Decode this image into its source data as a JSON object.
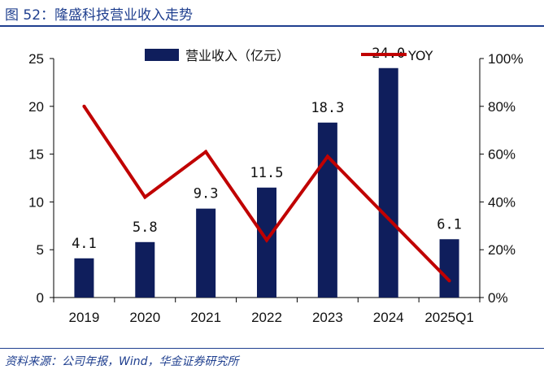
{
  "figure": {
    "title": "图 52：隆盛科技营业收入走势",
    "source": "资料来源：公司年报，Wind，华金证券研究所"
  },
  "chart_data": {
    "type": "bar+line",
    "categories": [
      "2019",
      "2020",
      "2021",
      "2022",
      "2023",
      "2024",
      "2025Q1"
    ],
    "series": [
      {
        "name": "营业收入（亿元）",
        "type": "bar",
        "axis": "left",
        "values": [
          4.1,
          5.8,
          9.3,
          11.5,
          18.3,
          24.0,
          6.1
        ],
        "labels": [
          "4.1",
          "5.8",
          "9.3",
          "11.5",
          "18.3",
          "24.0",
          "6.1"
        ]
      },
      {
        "name": "YOY",
        "type": "line",
        "axis": "right",
        "values": [
          80,
          42,
          61,
          24,
          59,
          33,
          7
        ]
      }
    ],
    "y_left": {
      "min": 0,
      "max": 25,
      "ticks": [
        "0",
        "5",
        "10",
        "15",
        "20",
        "25"
      ]
    },
    "y_right": {
      "min": 0,
      "max": 100,
      "ticks": [
        "0%",
        "20%",
        "40%",
        "60%",
        "80%",
        "100%"
      ]
    },
    "legend_position": "top-center",
    "colors": {
      "bar": "#0f1e5c",
      "line": "#c00000",
      "text": "#1f3f8f"
    }
  }
}
